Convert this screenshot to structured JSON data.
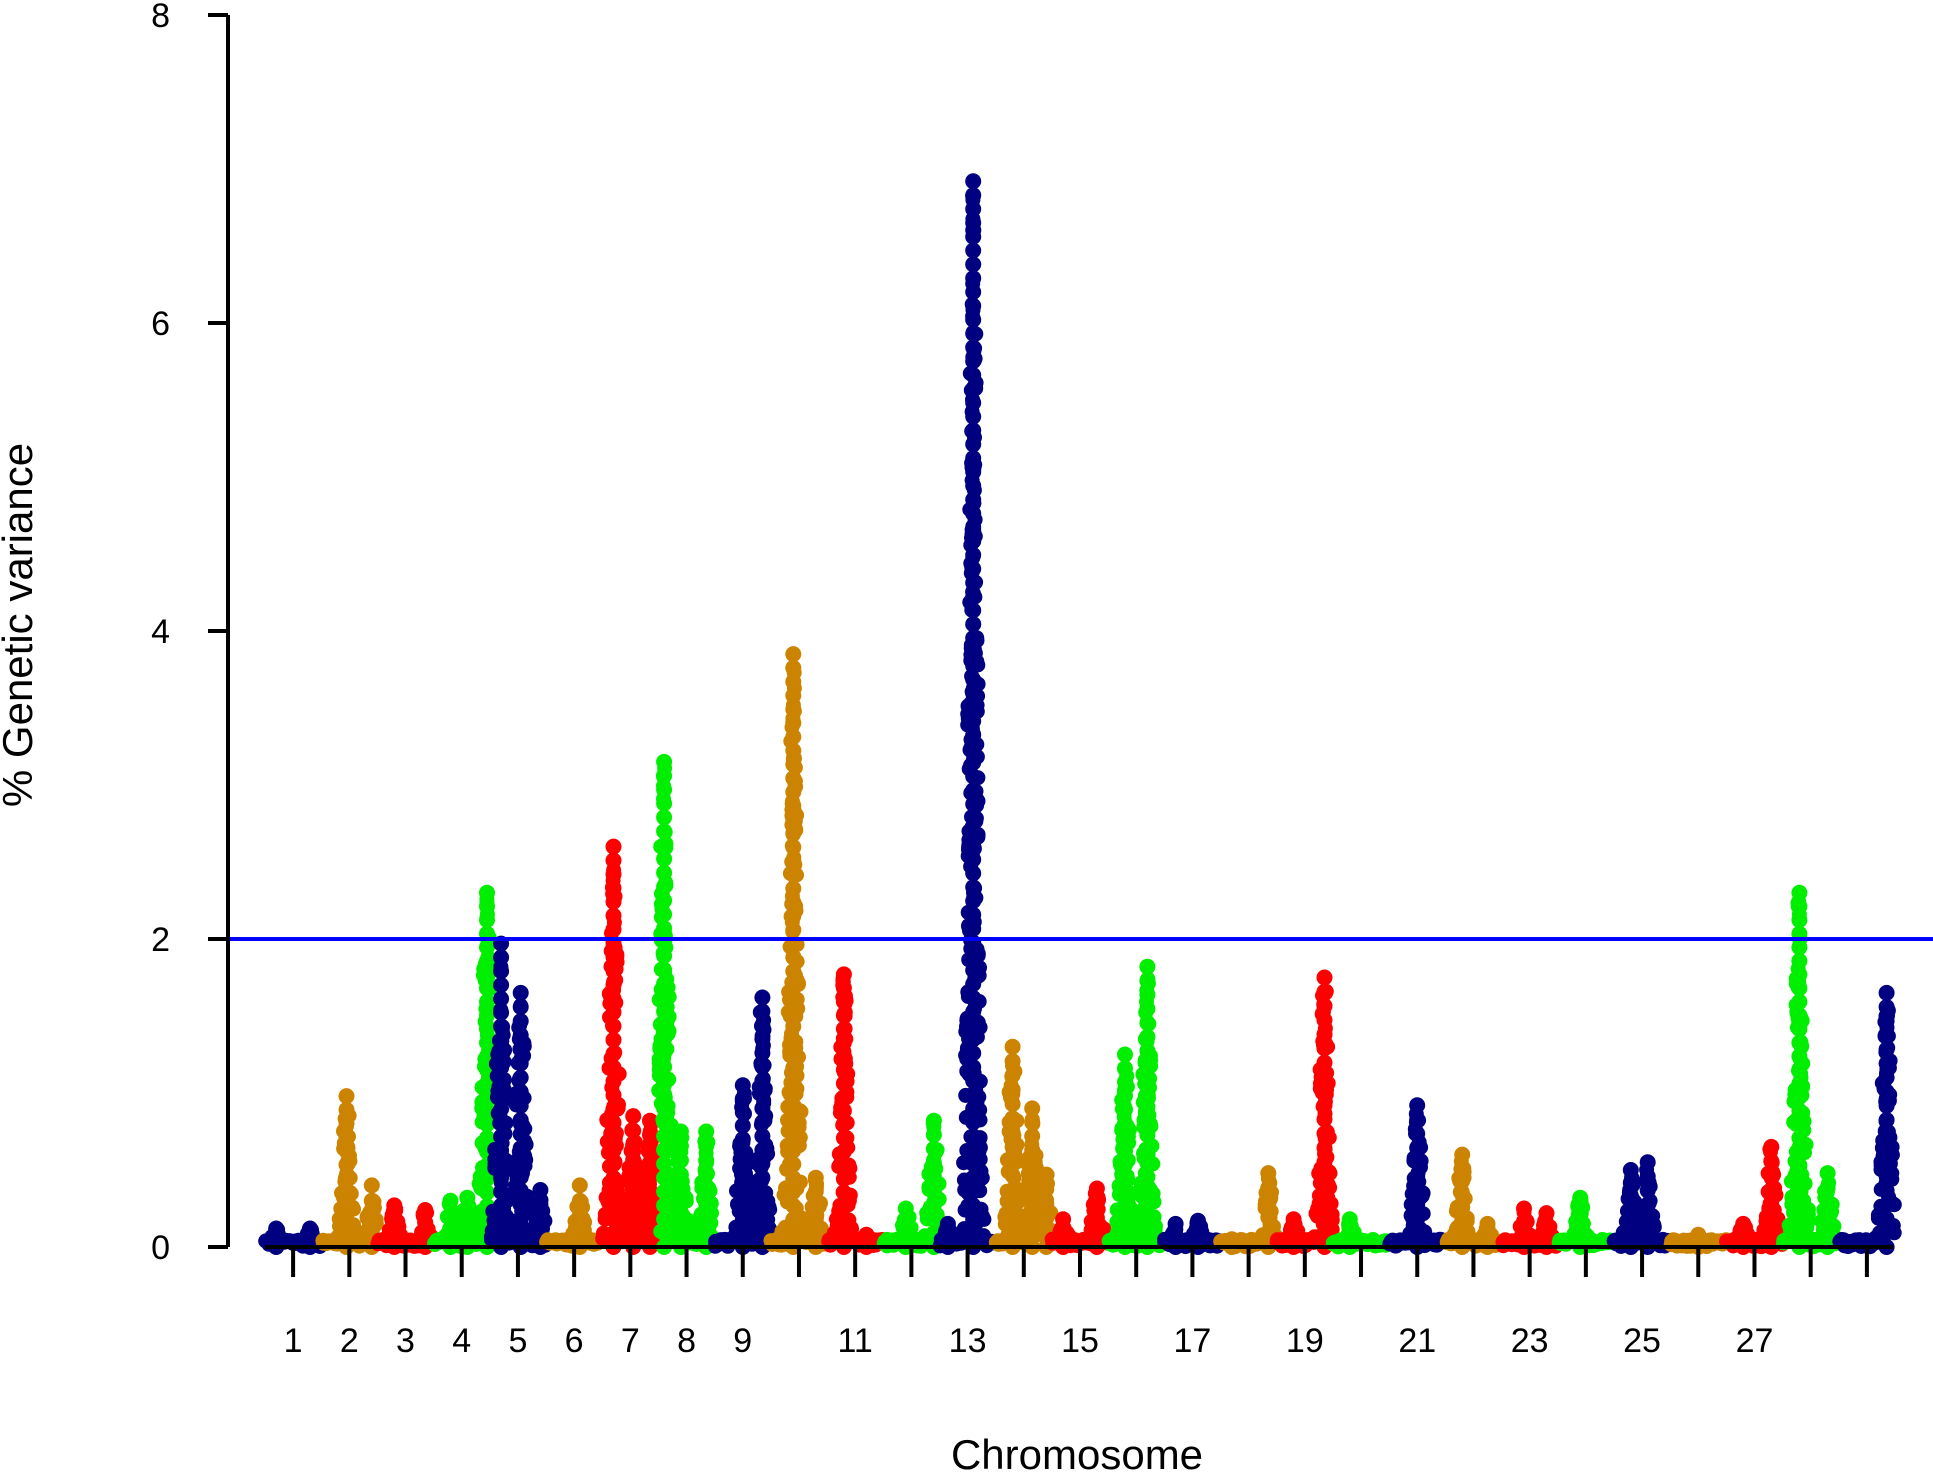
{
  "chart_data": {
    "type": "scatter",
    "title": "",
    "xlabel": "Chromosome",
    "ylabel": "% Genetic variance",
    "ylim": [
      0,
      8
    ],
    "y_ticks": [
      0,
      2,
      4,
      6,
      8
    ],
    "threshold": {
      "value": 2,
      "color": "#0000ff"
    },
    "chromosome_count": 29,
    "x_tick_labels": [
      "1",
      "2",
      "3",
      "4",
      "5",
      "6",
      "7",
      "8",
      "9",
      "11",
      "13",
      "15",
      "17",
      "19",
      "21",
      "23",
      "25",
      "27"
    ],
    "colors": {
      "navy": "#000080",
      "gold": "#cc8400",
      "red": "#ff0000",
      "green": "#00ee00"
    },
    "chromosomes": [
      {
        "chr": 1,
        "color": "navy",
        "peaks": [
          [
            0.2,
            0.12
          ],
          [
            0.8,
            0.12
          ]
        ]
      },
      {
        "chr": 2,
        "color": "gold",
        "peaks": [
          [
            0.45,
            0.98
          ],
          [
            0.9,
            0.4
          ]
        ]
      },
      {
        "chr": 3,
        "color": "red",
        "peaks": [
          [
            0.3,
            0.27
          ],
          [
            0.85,
            0.24
          ]
        ]
      },
      {
        "chr": 4,
        "color": "green",
        "peaks": [
          [
            0.3,
            0.3
          ],
          [
            0.6,
            0.32
          ],
          [
            0.95,
            2.3
          ]
        ]
      },
      {
        "chr": 5,
        "color": "navy",
        "peaks": [
          [
            0.2,
            1.97
          ],
          [
            0.55,
            1.65
          ],
          [
            0.9,
            0.37
          ]
        ]
      },
      {
        "chr": 6,
        "color": "gold",
        "peaks": [
          [
            0.6,
            0.4
          ]
        ]
      },
      {
        "chr": 7,
        "color": "red",
        "peaks": [
          [
            0.2,
            2.6
          ],
          [
            0.55,
            0.85
          ],
          [
            0.85,
            0.82
          ]
        ]
      },
      {
        "chr": 8,
        "color": "green",
        "peaks": [
          [
            0.1,
            3.15
          ],
          [
            0.4,
            0.75
          ],
          [
            0.85,
            0.75
          ]
        ]
      },
      {
        "chr": 9,
        "color": "navy",
        "peaks": [
          [
            0.5,
            1.05
          ],
          [
            0.85,
            1.62
          ]
        ]
      },
      {
        "chr": 10,
        "color": "gold",
        "peaks": [
          [
            0.4,
            3.85
          ],
          [
            0.8,
            0.45
          ]
        ]
      },
      {
        "chr": 11,
        "color": "red",
        "peaks": [
          [
            0.3,
            1.77
          ],
          [
            0.7,
            0.08
          ]
        ]
      },
      {
        "chr": 12,
        "color": "green",
        "peaks": [
          [
            0.4,
            0.25
          ],
          [
            0.9,
            0.82
          ]
        ]
      },
      {
        "chr": 13,
        "color": "navy",
        "peaks": [
          [
            0.15,
            0.15
          ],
          [
            0.6,
            6.92
          ]
        ]
      },
      {
        "chr": 14,
        "color": "gold",
        "peaks": [
          [
            0.3,
            1.3
          ],
          [
            0.65,
            0.9
          ],
          [
            0.9,
            0.47
          ]
        ]
      },
      {
        "chr": 15,
        "color": "red",
        "peaks": [
          [
            0.2,
            0.18
          ],
          [
            0.8,
            0.38
          ]
        ]
      },
      {
        "chr": 16,
        "color": "green",
        "peaks": [
          [
            0.3,
            1.25
          ],
          [
            0.7,
            1.82
          ]
        ]
      },
      {
        "chr": 17,
        "color": "navy",
        "peaks": [
          [
            0.2,
            0.15
          ],
          [
            0.6,
            0.17
          ]
        ]
      },
      {
        "chr": 18,
        "color": "gold",
        "peaks": [
          [
            0.2,
            0.05
          ],
          [
            0.85,
            0.48
          ]
        ]
      },
      {
        "chr": 19,
        "color": "red",
        "peaks": [
          [
            0.3,
            0.18
          ],
          [
            0.85,
            1.75
          ]
        ]
      },
      {
        "chr": 20,
        "color": "green",
        "peaks": [
          [
            0.3,
            0.18
          ]
        ]
      },
      {
        "chr": 21,
        "color": "navy",
        "peaks": [
          [
            0.5,
            0.92
          ]
        ]
      },
      {
        "chr": 22,
        "color": "gold",
        "peaks": [
          [
            0.3,
            0.6
          ],
          [
            0.75,
            0.15
          ]
        ]
      },
      {
        "chr": 23,
        "color": "red",
        "peaks": [
          [
            0.4,
            0.25
          ],
          [
            0.8,
            0.22
          ]
        ]
      },
      {
        "chr": 24,
        "color": "green",
        "peaks": [
          [
            0.4,
            0.32
          ]
        ]
      },
      {
        "chr": 25,
        "color": "navy",
        "peaks": [
          [
            0.3,
            0.5
          ],
          [
            0.6,
            0.55
          ]
        ]
      },
      {
        "chr": 26,
        "color": "gold",
        "peaks": [
          [
            0.5,
            0.08
          ]
        ]
      },
      {
        "chr": 27,
        "color": "red",
        "peaks": [
          [
            0.3,
            0.15
          ],
          [
            0.8,
            0.65
          ]
        ]
      },
      {
        "chr": 28,
        "color": "green",
        "peaks": [
          [
            0.3,
            2.3
          ],
          [
            0.8,
            0.48
          ]
        ]
      },
      {
        "chr": 29,
        "color": "navy",
        "peaks": [
          [
            0.85,
            1.65
          ]
        ]
      }
    ]
  }
}
